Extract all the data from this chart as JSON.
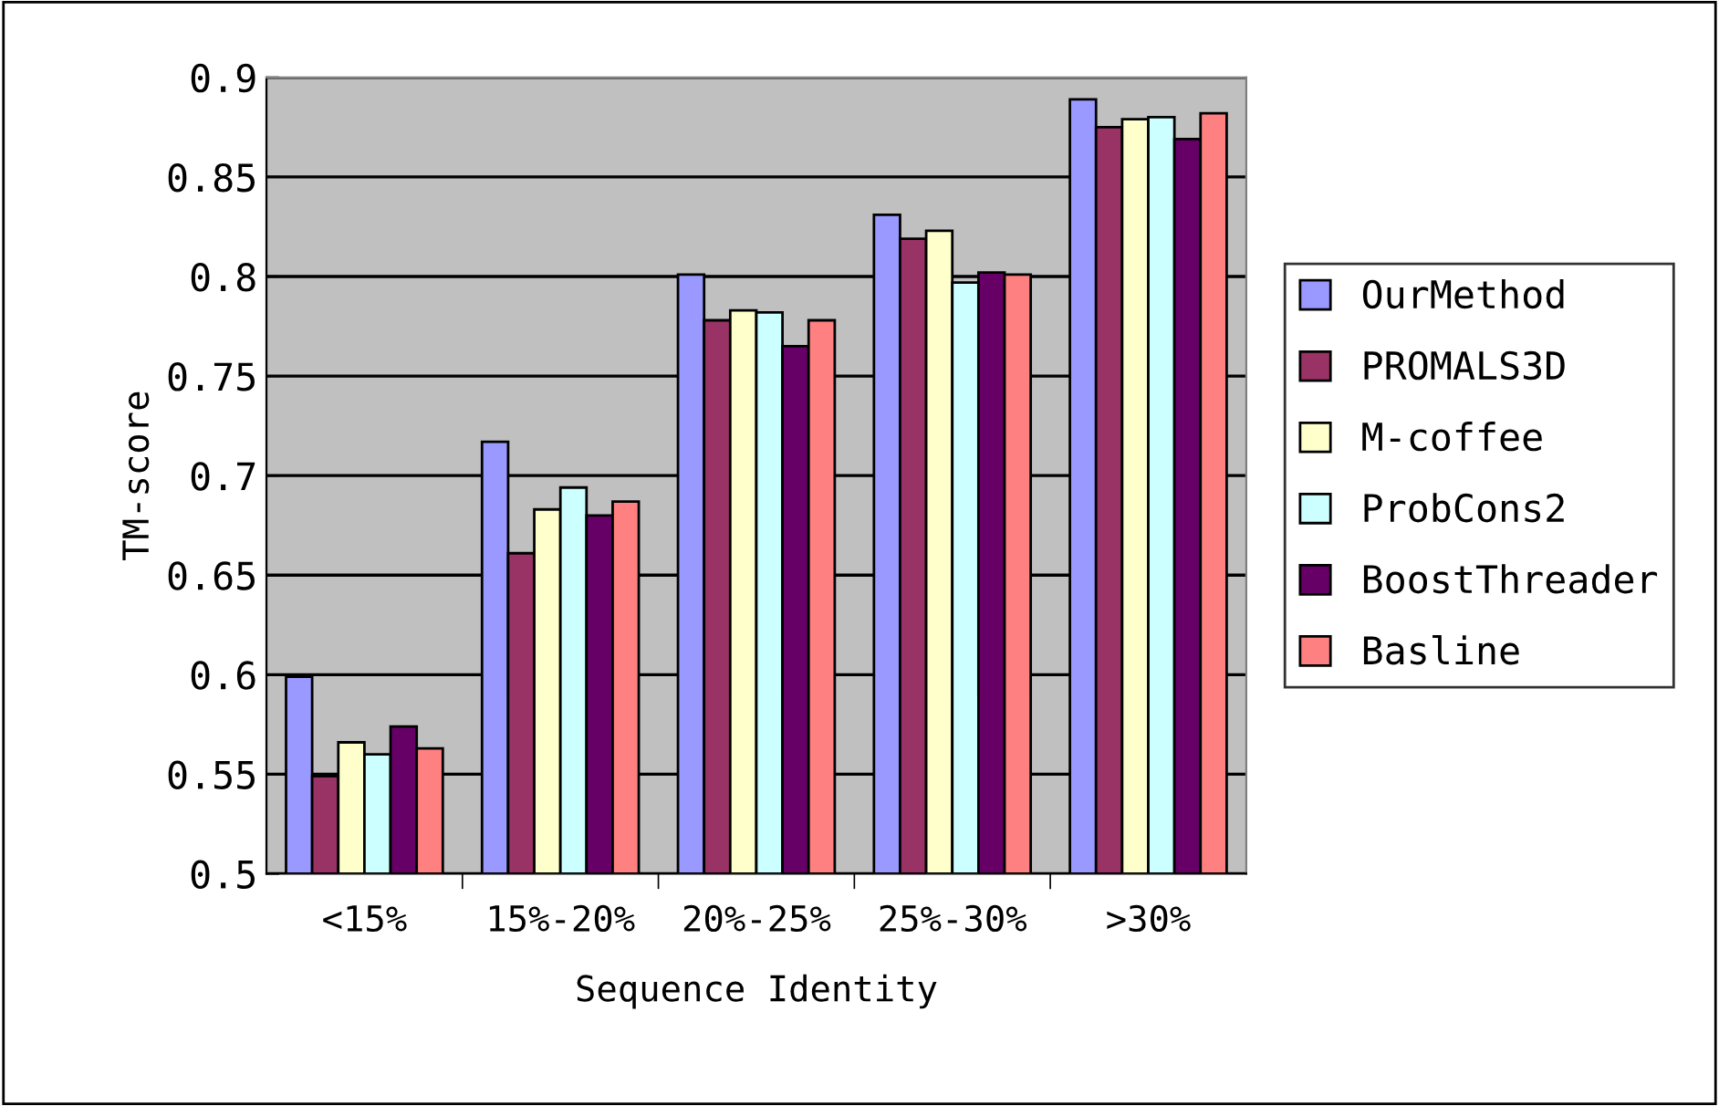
{
  "chart_data": {
    "type": "bar",
    "xlabel": "Sequence Identity",
    "ylabel": "TM-score",
    "categories": [
      "<15%",
      "15%-20%",
      "20%-25%",
      "25%-30%",
      ">30%"
    ],
    "series": [
      {
        "name": "OurMethod",
        "color": "#9999ff",
        "values": [
          0.599,
          0.717,
          0.801,
          0.831,
          0.889
        ]
      },
      {
        "name": "PROMALS3D",
        "color": "#993366",
        "values": [
          0.549,
          0.661,
          0.778,
          0.819,
          0.875
        ]
      },
      {
        "name": "M-coffee",
        "color": "#ffffcc",
        "values": [
          0.566,
          0.683,
          0.783,
          0.823,
          0.879
        ]
      },
      {
        "name": "ProbCons2",
        "color": "#ccffff",
        "values": [
          0.56,
          0.694,
          0.782,
          0.797,
          0.88
        ]
      },
      {
        "name": "BoostThreader",
        "color": "#660066",
        "values": [
          0.574,
          0.68,
          0.765,
          0.802,
          0.869
        ]
      },
      {
        "name": "Basline",
        "color": "#ff8080",
        "values": [
          0.563,
          0.687,
          0.778,
          0.801,
          0.882
        ]
      }
    ],
    "ylim": [
      0.5,
      0.9
    ],
    "yticks": [
      {
        "value": 0.5,
        "label": "0.5"
      },
      {
        "value": 0.55,
        "label": "0.55"
      },
      {
        "value": 0.6,
        "label": "0.6"
      },
      {
        "value": 0.65,
        "label": "0.65"
      },
      {
        "value": 0.7,
        "label": "0.7"
      },
      {
        "value": 0.75,
        "label": "0.75"
      },
      {
        "value": 0.8,
        "label": "0.8"
      },
      {
        "value": 0.85,
        "label": "0.85"
      },
      {
        "value": 0.9,
        "label": "0.9"
      }
    ],
    "grid": "y",
    "legend": "right"
  }
}
